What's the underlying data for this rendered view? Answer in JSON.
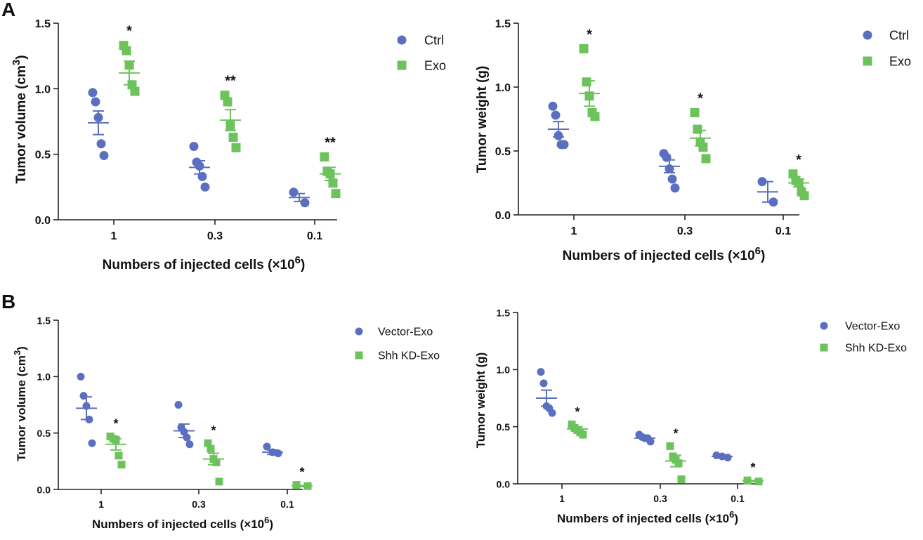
{
  "figure": {
    "panel_labels": [
      "A",
      "B"
    ]
  },
  "chart_data": [
    {
      "type": "scatter",
      "panel": "A",
      "ylabel": "Tumor volume (cm",
      "ylabel_sup": "3",
      "ylabel_end": ")",
      "xlabel": "Numbers of injected cells (×10",
      "xlabel_sup": "6",
      "xlabel_end": ")",
      "categories": [
        "1",
        "0.3",
        "0.1"
      ],
      "ylim": [
        0,
        1.5
      ],
      "yticks": [
        "0.0",
        "0.5",
        "1.0",
        "1.5"
      ],
      "colors": {
        "series1": "#5a6fc0",
        "series2": "#6cc35c"
      },
      "series": [
        {
          "name": "Ctrl",
          "marker": "circle",
          "points": [
            [
              0.97,
              0.9,
              0.78,
              0.58,
              0.49
            ],
            [
              0.56,
              0.44,
              0.41,
              0.33,
              0.25
            ],
            [
              0.21,
              0.13
            ]
          ],
          "means": [
            0.74,
            0.4,
            0.17
          ],
          "sems": [
            0.09,
            0.05,
            0.03
          ]
        },
        {
          "name": "Exo",
          "marker": "square",
          "points": [
            [
              1.33,
              1.29,
              1.18,
              1.03,
              0.98
            ],
            [
              0.95,
              0.9,
              0.72,
              0.63,
              0.55
            ],
            [
              0.48,
              0.37,
              0.35,
              0.28,
              0.2
            ]
          ],
          "means": [
            1.12,
            0.76,
            0.35
          ],
          "sems": [
            0.09,
            0.08,
            0.05
          ]
        }
      ],
      "annotations": [
        "*",
        "**",
        "**"
      ]
    },
    {
      "type": "scatter",
      "panel": "A",
      "ylabel": "Tumor weight (g)",
      "ylabel_sup": "",
      "ylabel_end": "",
      "xlabel": "Numbers of injected cells (×10",
      "xlabel_sup": "6",
      "xlabel_end": ")",
      "categories": [
        "1",
        "0.3",
        "0.1"
      ],
      "ylim": [
        0,
        1.5
      ],
      "yticks": [
        "0.0",
        "0.5",
        "1.0",
        "1.5"
      ],
      "colors": {
        "series1": "#5a6fc0",
        "series2": "#6cc35c"
      },
      "series": [
        {
          "name": "Ctrl",
          "marker": "circle",
          "points": [
            [
              0.85,
              0.78,
              0.62,
              0.55,
              0.55
            ],
            [
              0.48,
              0.45,
              0.36,
              0.28,
              0.21
            ],
            [
              0.26,
              0.1
            ]
          ],
          "means": [
            0.67,
            0.38,
            0.18
          ],
          "sems": [
            0.06,
            0.05,
            0.08
          ]
        },
        {
          "name": "Exo",
          "marker": "square",
          "points": [
            [
              1.3,
              1.04,
              0.93,
              0.8,
              0.77
            ],
            [
              0.8,
              0.67,
              0.57,
              0.53,
              0.44
            ],
            [
              0.32,
              0.27,
              0.25,
              0.18,
              0.15
            ]
          ],
          "means": [
            0.95,
            0.6,
            0.25
          ],
          "sems": [
            0.1,
            0.06,
            0.03
          ]
        }
      ],
      "annotations": [
        "*",
        "*",
        "*"
      ]
    },
    {
      "type": "scatter",
      "panel": "B",
      "ylabel": "Tumor volume (cm",
      "ylabel_sup": "3",
      "ylabel_end": ")",
      "xlabel": "Numbers of injected cells (×10",
      "xlabel_sup": "6",
      "xlabel_end": ")",
      "categories": [
        "1",
        "0.3",
        "0.1"
      ],
      "ylim": [
        0,
        1.5
      ],
      "yticks": [
        "0.0",
        "0.5",
        "1.0",
        "1.5"
      ],
      "colors": {
        "series1": "#5a6fc0",
        "series2": "#6cc35c"
      },
      "series": [
        {
          "name": "Vector-Exo",
          "marker": "circle",
          "points": [
            [
              1.0,
              0.83,
              0.74,
              0.62,
              0.41
            ],
            [
              0.75,
              0.55,
              0.51,
              0.46,
              0.4
            ],
            [
              0.38,
              0.33,
              0.32
            ]
          ],
          "means": [
            0.72,
            0.52,
            0.33
          ],
          "sems": [
            0.1,
            0.06,
            0.02
          ]
        },
        {
          "name": "Shh KD-Exo",
          "marker": "square",
          "points": [
            [
              0.47,
              0.45,
              0.44,
              0.3,
              0.22
            ],
            [
              0.41,
              0.36,
              0.27,
              0.24,
              0.07
            ],
            [
              0.04,
              0.03
            ]
          ],
          "means": [
            0.4,
            0.27,
            0.03
          ],
          "sems": [
            0.05,
            0.05,
            0.005
          ]
        }
      ],
      "annotations": [
        "*",
        "*",
        "*"
      ]
    },
    {
      "type": "scatter",
      "panel": "B",
      "ylabel": "Tumor weight (g)",
      "ylabel_sup": "",
      "ylabel_end": "",
      "xlabel": "Numbers of injected cells (×10",
      "xlabel_sup": "6",
      "xlabel_end": ")",
      "categories": [
        "1",
        "0.3",
        "0.1"
      ],
      "ylim": [
        0,
        1.5
      ],
      "yticks": [
        "0.0",
        "0.5",
        "1.0",
        "1.5"
      ],
      "colors": {
        "series1": "#5a6fc0",
        "series2": "#6cc35c"
      },
      "series": [
        {
          "name": "Vector-Exo",
          "marker": "circle",
          "points": [
            [
              0.98,
              0.88,
              0.68,
              0.66,
              0.62
            ],
            [
              0.43,
              0.41,
              0.4,
              0.4,
              0.37
            ],
            [
              0.25,
              0.24,
              0.23
            ]
          ],
          "means": [
            0.75,
            0.4,
            0.24
          ],
          "sems": [
            0.07,
            0.01,
            0.005
          ]
        },
        {
          "name": "Shh KD-Exo",
          "marker": "square",
          "points": [
            [
              0.52,
              0.49,
              0.47,
              0.45,
              0.43
            ],
            [
              0.33,
              0.24,
              0.21,
              0.18,
              0.04
            ],
            [
              0.03,
              0.02
            ]
          ],
          "means": [
            0.48,
            0.2,
            0.025
          ],
          "sems": [
            0.02,
            0.05,
            0.005
          ]
        }
      ],
      "annotations": [
        "*",
        "*",
        "*"
      ]
    }
  ]
}
